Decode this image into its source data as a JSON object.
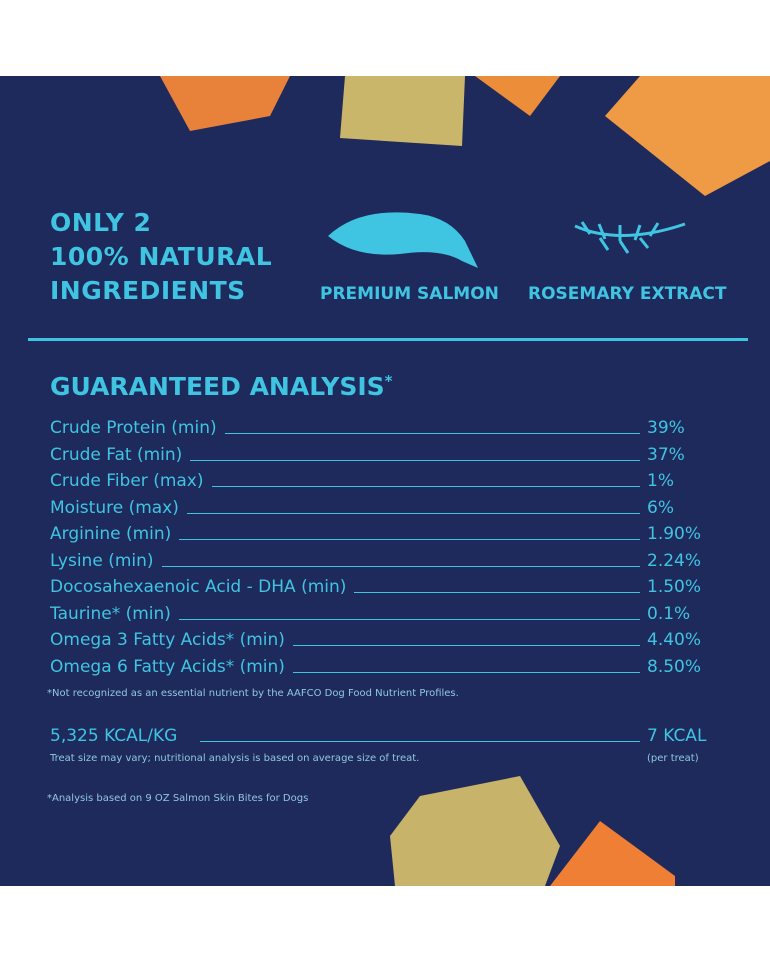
{
  "header": {
    "title_lines": [
      "ONLY 2",
      "100% NATURAL",
      "INGREDIENTS"
    ],
    "ingredients": [
      "PREMIUM SALMON",
      "ROSEMARY EXTRACT"
    ]
  },
  "analysis": {
    "title": "GUARANTEED ANALYSIS",
    "title_mark": "*",
    "rows": [
      [
        "Crude Protein (min)",
        "39%"
      ],
      [
        "Crude Fat (min)",
        "37%"
      ],
      [
        "Crude Fiber (max)",
        "1%"
      ],
      [
        "Moisture (max)",
        "6%"
      ],
      [
        "Arginine (min)",
        "1.90%"
      ],
      [
        "Lysine (min)",
        "2.24%"
      ],
      [
        "Docosahexaenoic Acid - DHA (min)",
        "1.50%"
      ],
      [
        "Taurine* (min)",
        "0.1%"
      ],
      [
        "Omega 3 Fatty Acids* (min)",
        "4.40%"
      ],
      [
        "Omega 6 Fatty Acids* (min)",
        "8.50%"
      ]
    ],
    "footnote": "*Not recognized as an essential nutrient by the AAFCO Dog Food Nutrient Profiles."
  },
  "calories": {
    "label": "5,325 KCAL/KG",
    "value": "7 KCAL",
    "note": "Treat size may vary; nutritional analysis is based on average size of treat.",
    "value_note": "(per treat)"
  },
  "bottom_note": "*Analysis based on 9 OZ Salmon Skin Bites for Dogs"
}
